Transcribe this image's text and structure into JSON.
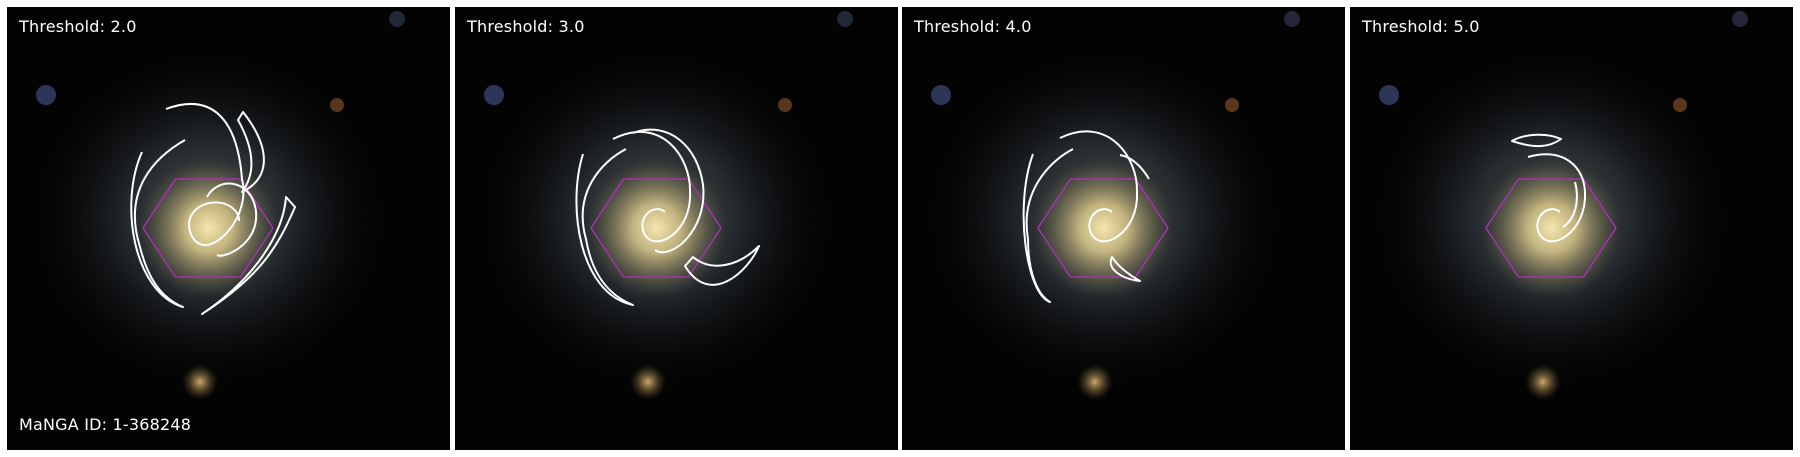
{
  "panels": [
    {
      "label": "Threshold: 2.0",
      "arms": [
        "M159,102 C202,86 230,108 235,172 C244,208 210,245 193,237 C182,233 174,208 196,198 C217,190 233,203 232,214",
        "M135,145 C112,196 126,285 176,300 C152,290 140,268 133,240 C115,183 148,150 178,133",
        "M236,105 C262,138 266,170 235,185 C250,165 246,140 231,113 Z",
        "M279,190 C276,230 243,275 195,307 C252,270 270,242 288,200 Z",
        "M200,190 C212,168 246,173 249,205 C252,238 216,252 210,248"
      ]
    },
    {
      "label": "Threshold: 3.0",
      "arms": [
        "M158,132 C206,108 236,150 235,185 C237,226 199,247 189,226 C182,210 199,196 210,205",
        "M128,147 C112,198 124,287 178,298 C150,287 136,262 131,232 C118,186 146,155 171,142",
        "M230,259 C255,300 293,265 304,239 C283,260 256,265 238,250 Z",
        "M178,126 C214,113 243,140 248,178 C253,223 216,254 200,243"
      ]
    },
    {
      "label": "Threshold: 4.0",
      "arms": [
        "M158,131 C206,108 236,150 235,185 C237,226 199,247 189,226 C182,210 199,196 210,205",
        "M131,147 C112,198 124,287 148,295 C134,287 126,262 126,232 C118,186 146,155 171,142",
        "M210,250 C204,262 220,272 238,274 C224,266 215,258 210,250 Z",
        "M218,148 C230,150 240,160 247,172"
      ]
    },
    {
      "label": "Threshold: 5.0",
      "arms": [
        "M178,150 C214,140 234,160 235,185 C237,226 199,247 189,226 C182,210 199,196 210,205",
        "M162,134 C176,126 198,126 211,132 C200,140 186,142 162,134 Z",
        "M225,175 C230,194 225,212 213,220"
      ]
    }
  ],
  "manga_id": "MaNGA ID: 1-368248",
  "colors": {
    "contour": "#ffffff",
    "hexagon": "#b030c0",
    "background": "#030303",
    "bulge": "#d8c68a",
    "disk": "#7e8fa0"
  }
}
